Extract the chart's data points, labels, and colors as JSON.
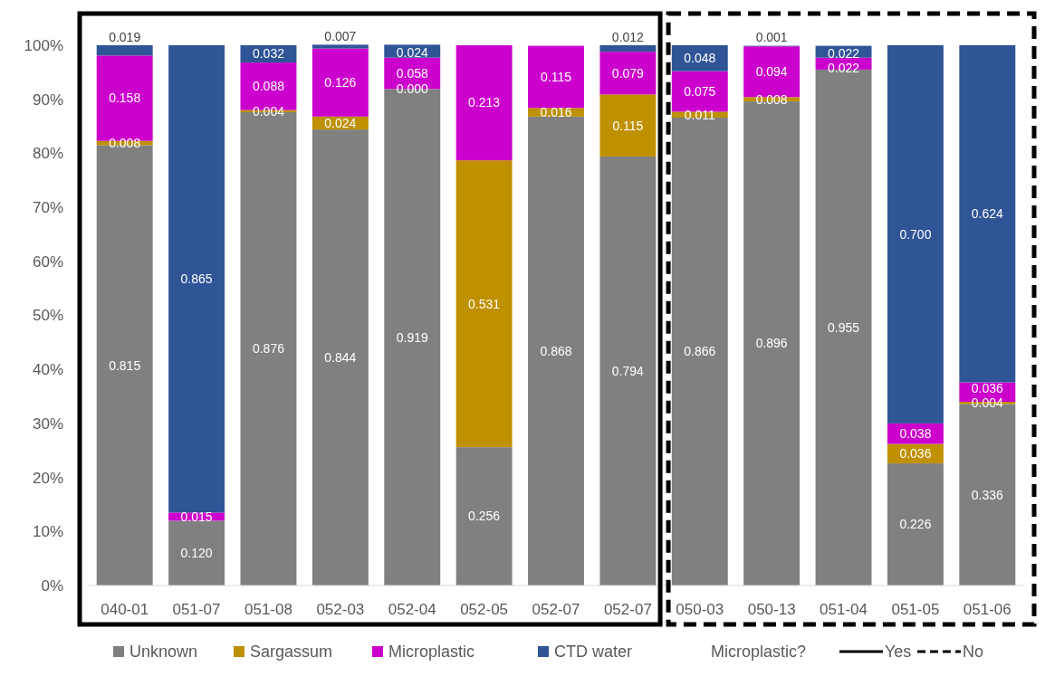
{
  "chart_data": {
    "type": "bar",
    "stacked": true,
    "categories": [
      "040-01",
      "051-07",
      "051-08",
      "052-03",
      "052-04",
      "052-05",
      "052-07",
      "052-07",
      "050-03",
      "050-13",
      "051-04",
      "051-05",
      "051-06"
    ],
    "series": [
      {
        "name": "Unknown",
        "color": "#808080",
        "values": [
          0.815,
          0.12,
          0.876,
          0.844,
          0.919,
          0.256,
          0.868,
          0.794,
          0.866,
          0.896,
          0.955,
          0.226,
          0.336
        ],
        "value_labels": [
          "0.815",
          "0.120",
          "0.876",
          "0.844",
          "0.919",
          "0.256",
          "0.868",
          "0.794",
          "0.866",
          "0.896",
          "0.955",
          "0.226",
          "0.336"
        ]
      },
      {
        "name": "Sargassum",
        "color": "#bf9000",
        "values": [
          0.008,
          null,
          0.004,
          0.024,
          0.0,
          0.531,
          0.016,
          0.115,
          0.011,
          0.008,
          null,
          0.036,
          0.004
        ],
        "value_labels": [
          "0.008",
          null,
          "0.004",
          "0.024",
          "0.000",
          "0.531",
          "0.016",
          "0.115",
          "0.011",
          "0.008",
          null,
          "0.036",
          "0.004"
        ]
      },
      {
        "name": "Microplastic",
        "color": "#cc00cc",
        "values": [
          0.158,
          0.015,
          0.088,
          0.126,
          0.058,
          0.213,
          0.115,
          0.079,
          0.075,
          0.094,
          0.022,
          0.038,
          0.036
        ],
        "value_labels": [
          "0.158",
          "0.015",
          "0.088",
          "0.126",
          "0.058",
          "0.213",
          "0.115",
          "0.079",
          "0.075",
          "0.094",
          "0.022",
          "0.038",
          "0.036"
        ]
      },
      {
        "name": "CTD water",
        "color": "#2f5597",
        "values": [
          0.019,
          0.865,
          0.032,
          0.007,
          0.024,
          null,
          null,
          0.012,
          0.048,
          0.001,
          0.022,
          0.7,
          0.624
        ],
        "value_labels": [
          "0.019",
          "0.865",
          "0.032",
          "0.007",
          "0.024",
          null,
          null,
          "0.012",
          "0.048",
          "0.001",
          "0.022",
          "0.700",
          "0.624"
        ]
      }
    ],
    "ylim": [
      0,
      1
    ],
    "yticks": [
      {
        "value": 0,
        "label": "0%"
      },
      {
        "value": 0.1,
        "label": "10%"
      },
      {
        "value": 0.2,
        "label": "20%"
      },
      {
        "value": 0.3,
        "label": "30%"
      },
      {
        "value": 0.4,
        "label": "40%"
      },
      {
        "value": 0.5,
        "label": "50%"
      },
      {
        "value": 0.6,
        "label": "60%"
      },
      {
        "value": 0.7,
        "label": "70%"
      },
      {
        "value": 0.8,
        "label": "80%"
      },
      {
        "value": 0.9,
        "label": "90%"
      },
      {
        "value": 1,
        "label": "100%"
      }
    ],
    "annotations": [
      "Microplastic?",
      "Yes",
      "No"
    ],
    "legend": "bottom",
    "grid": false
  }
}
